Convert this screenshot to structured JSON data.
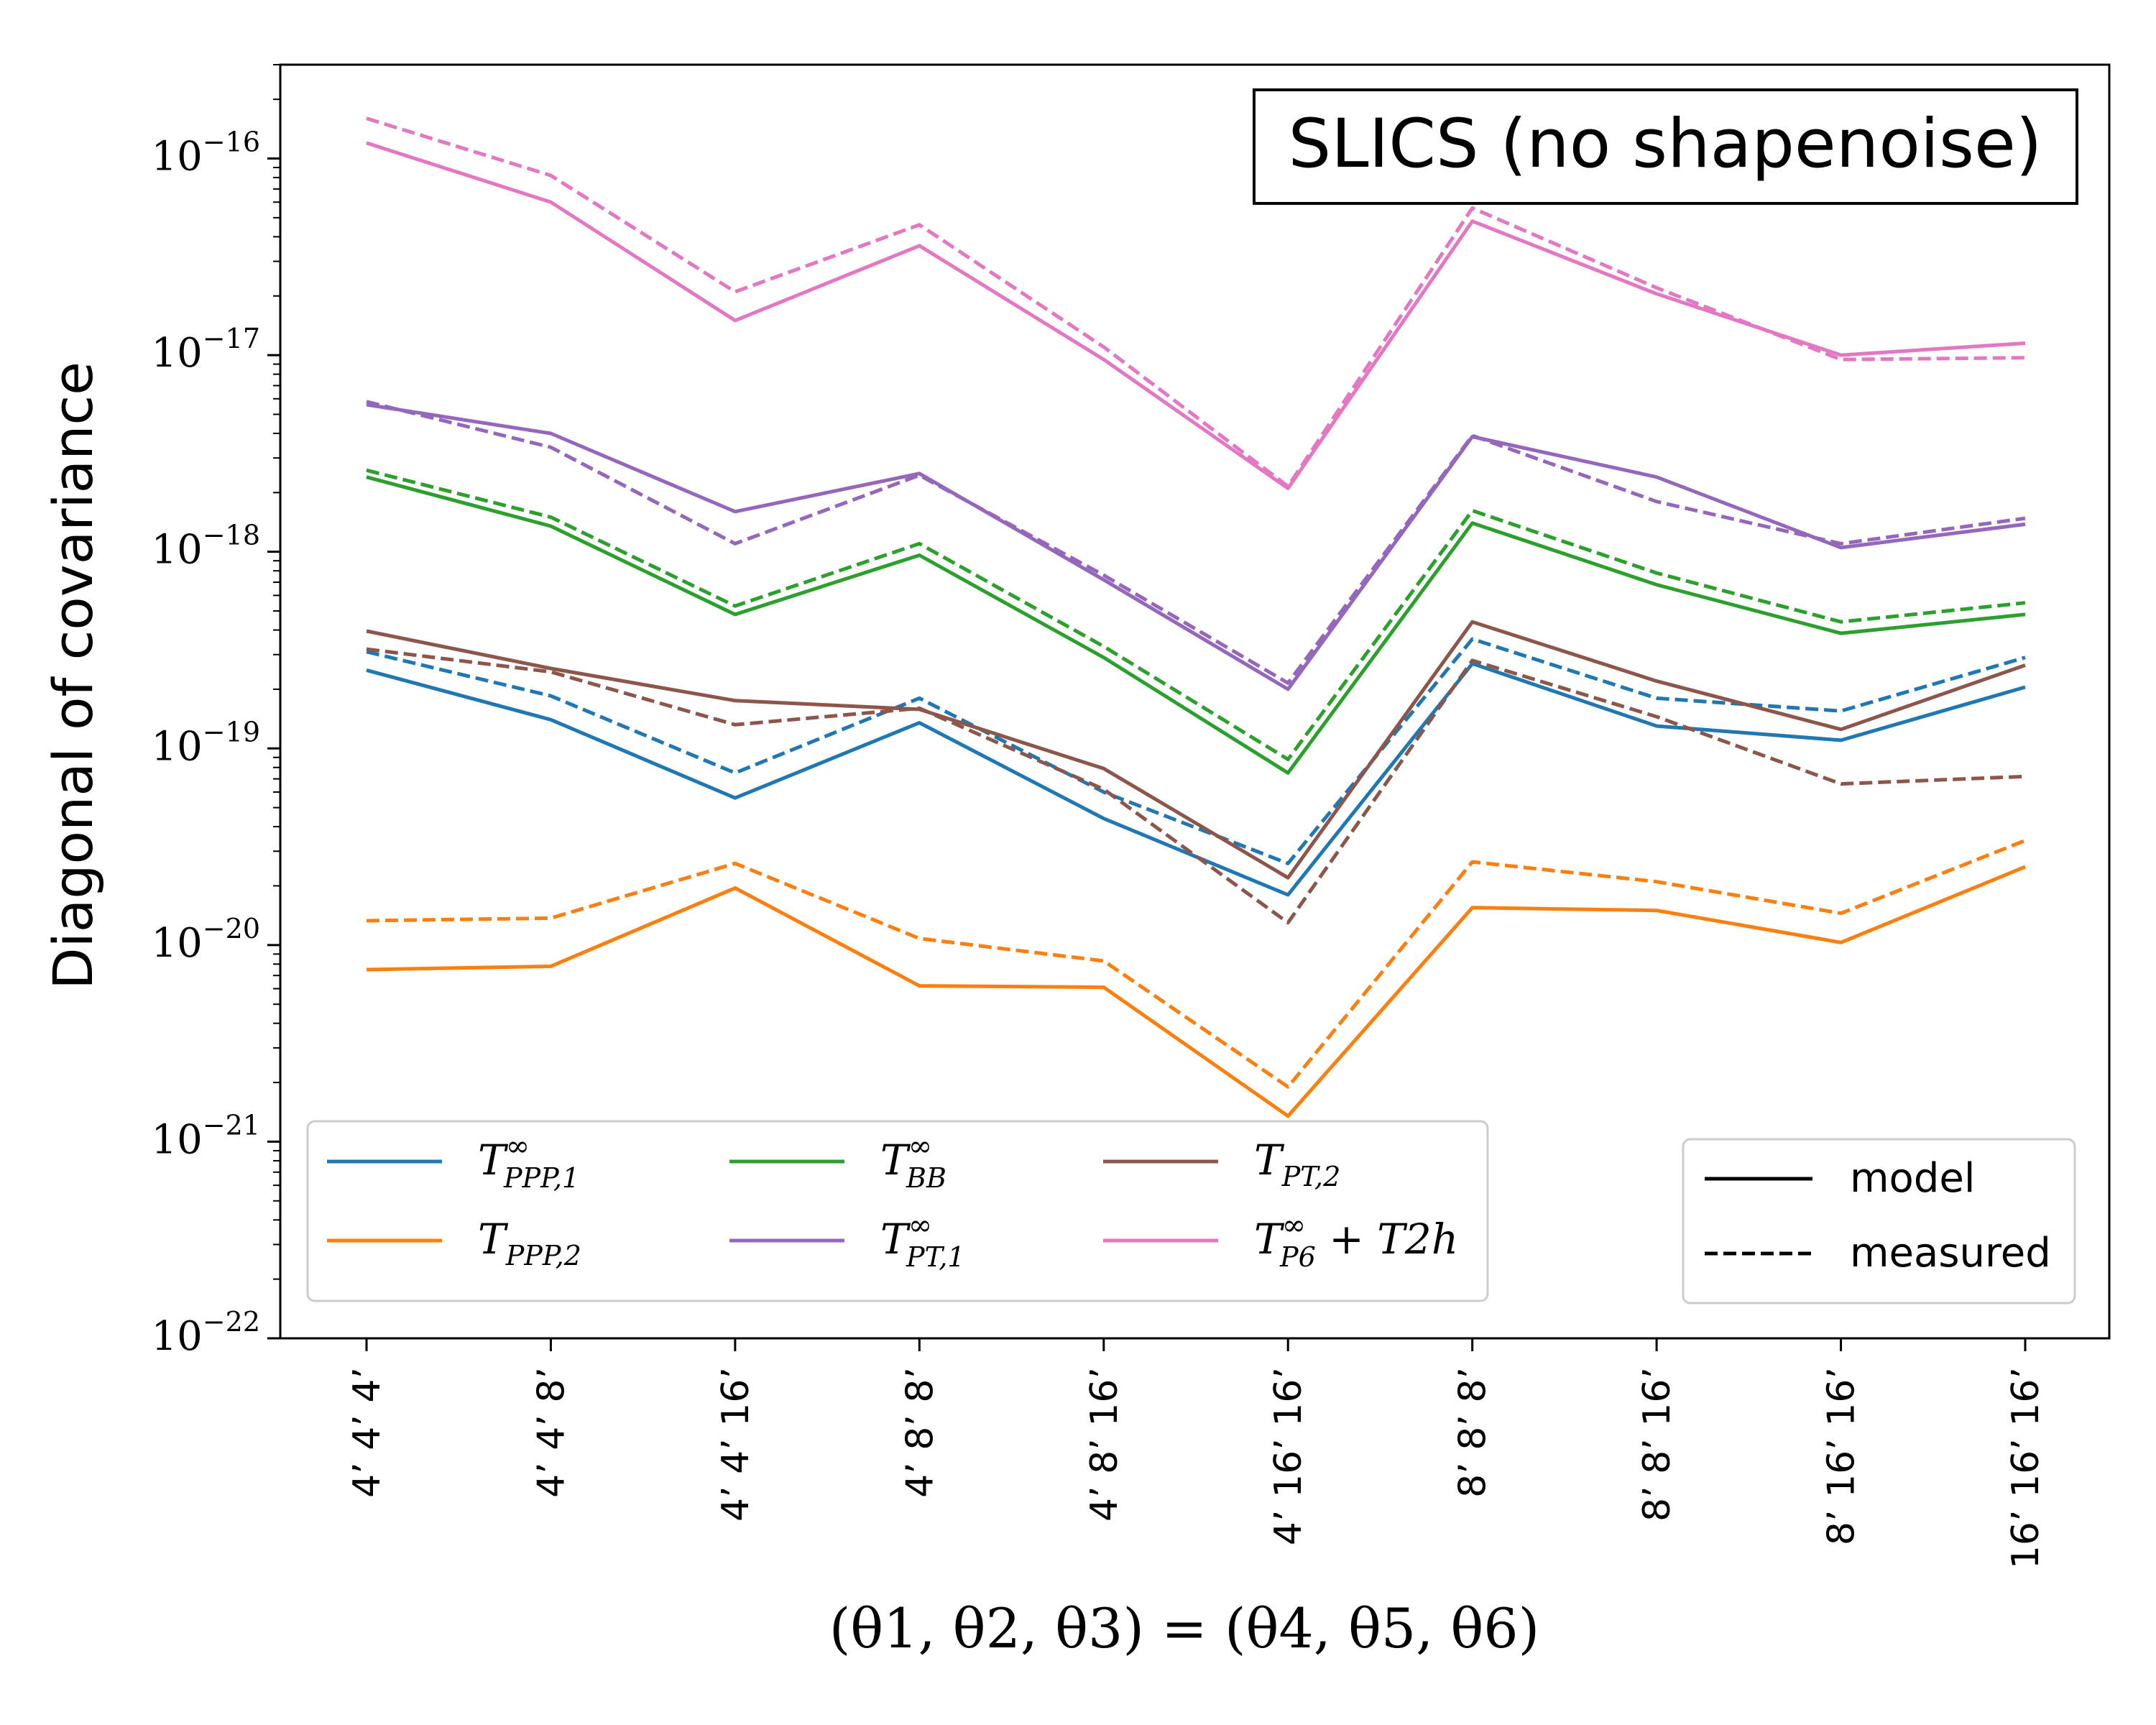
{
  "chart_data": {
    "type": "line",
    "title": "SLICS (no shapenoise)",
    "xlabel": "(θ1, θ2, θ3) = (θ4, θ5, θ6)",
    "ylabel": "Diagonal of covariance",
    "yscale": "log",
    "ylim": [
      1e-22,
      3e-16
    ],
    "grid": false,
    "legend_position": "lower-left",
    "style_legend_position": "lower-right",
    "categories": [
      "4’ 4’ 4’",
      "4’ 4’ 8’",
      "4’ 4’ 16’",
      "4’ 8’ 8’",
      "4’ 8’ 16’",
      "4’ 16’ 16’",
      "8’ 8’ 8’",
      "8’ 8’ 16’",
      "8’ 16’ 16’",
      "16’ 16’ 16’"
    ],
    "yticks": [
      {
        "value": 1e-22,
        "base": "10",
        "exp": "−22"
      },
      {
        "value": 1e-21,
        "base": "10",
        "exp": "−21"
      },
      {
        "value": 1e-20,
        "base": "10",
        "exp": "−20"
      },
      {
        "value": 1e-19,
        "base": "10",
        "exp": "−19"
      },
      {
        "value": 1e-18,
        "base": "10",
        "exp": "−18"
      },
      {
        "value": 1e-17,
        "base": "10",
        "exp": "−17"
      },
      {
        "value": 1e-16,
        "base": "10",
        "exp": "−16"
      }
    ],
    "series": [
      {
        "name": "T^∞_PPP,1",
        "label_base": "T",
        "label_sup": "∞",
        "label_sub": "PPP,1",
        "label_extra": "",
        "color": "#1f77b4",
        "model": [
          2.5e-19,
          1.4e-19,
          5.6e-20,
          1.35e-19,
          4.4e-20,
          1.8e-20,
          2.7e-19,
          1.3e-19,
          1.1e-19,
          2.05e-19
        ],
        "measured": [
          3.1e-19,
          1.85e-19,
          7.5e-20,
          1.8e-19,
          6e-20,
          2.6e-20,
          3.6e-19,
          1.8e-19,
          1.55e-19,
          2.9e-19
        ]
      },
      {
        "name": "T_PPP,2",
        "label_base": "T",
        "label_sup": "",
        "label_sub": "PPP,2",
        "label_extra": "",
        "color": "#ff7f0e",
        "model": [
          7.5e-21,
          7.8e-21,
          1.95e-20,
          6.2e-21,
          6.1e-21,
          1.35e-21,
          1.55e-20,
          1.5e-20,
          1.03e-20,
          2.5e-20
        ],
        "measured": [
          1.33e-20,
          1.37e-20,
          2.6e-20,
          1.08e-20,
          8.3e-21,
          1.9e-21,
          2.65e-20,
          2.1e-20,
          1.45e-20,
          3.4e-20
        ]
      },
      {
        "name": "T^∞_BB",
        "label_base": "T",
        "label_sup": "∞",
        "label_sub": "BB",
        "label_extra": "",
        "color": "#2ca02c",
        "model": [
          2.4e-18,
          1.35e-18,
          4.8e-19,
          9.6e-19,
          2.9e-19,
          7.5e-20,
          1.4e-18,
          6.8e-19,
          3.85e-19,
          4.8e-19
        ],
        "measured": [
          2.6e-18,
          1.5e-18,
          5.3e-19,
          1.1e-18,
          3.3e-19,
          8.8e-20,
          1.62e-18,
          7.8e-19,
          4.4e-19,
          5.5e-19
        ]
      },
      {
        "name": "T^∞_PT,1",
        "label_base": "T",
        "label_sup": "∞",
        "label_sub": "PT,1",
        "label_extra": "",
        "color": "#9467bd",
        "model": [
          5.6e-18,
          4e-18,
          1.6e-18,
          2.5e-18,
          7.2e-19,
          2e-19,
          3.85e-18,
          2.4e-18,
          1.05e-18,
          1.38e-18
        ],
        "measured": [
          5.8e-18,
          3.4e-18,
          1.1e-18,
          2.45e-18,
          7.6e-19,
          2.15e-19,
          3.9e-18,
          1.8e-18,
          1.1e-18,
          1.48e-18
        ]
      },
      {
        "name": "T_PT,2",
        "label_base": "T",
        "label_sup": "",
        "label_sub": "PT,2",
        "label_extra": "",
        "color": "#8c564b",
        "model": [
          3.95e-19,
          2.55e-19,
          1.75e-19,
          1.58e-19,
          7.9e-20,
          2.2e-20,
          4.4e-19,
          2.2e-19,
          1.25e-19,
          2.65e-19
        ],
        "measured": [
          3.2e-19,
          2.45e-19,
          1.32e-19,
          1.6e-19,
          6.2e-20,
          1.3e-20,
          2.8e-19,
          1.45e-19,
          6.6e-20,
          7.2e-20
        ]
      },
      {
        "name": "T^∞_P6 + T_2h",
        "label_base": "T",
        "label_sup": "∞",
        "label_sub": "P6",
        "label_extra": " + T2h",
        "color": "#e377c2",
        "model": [
          1.2e-16,
          6e-17,
          1.5e-17,
          3.6e-17,
          9.5e-18,
          2.1e-18,
          4.8e-17,
          2.05e-17,
          1e-17,
          1.15e-17
        ],
        "measured": [
          1.6e-16,
          8.2e-17,
          2.1e-17,
          4.6e-17,
          1.1e-17,
          2.15e-18,
          5.6e-17,
          2.2e-17,
          9.5e-18,
          9.7e-18
        ]
      }
    ],
    "style_legend": [
      {
        "label": "model",
        "dash": "solid"
      },
      {
        "label": "measured",
        "dash": "dashed"
      }
    ]
  }
}
